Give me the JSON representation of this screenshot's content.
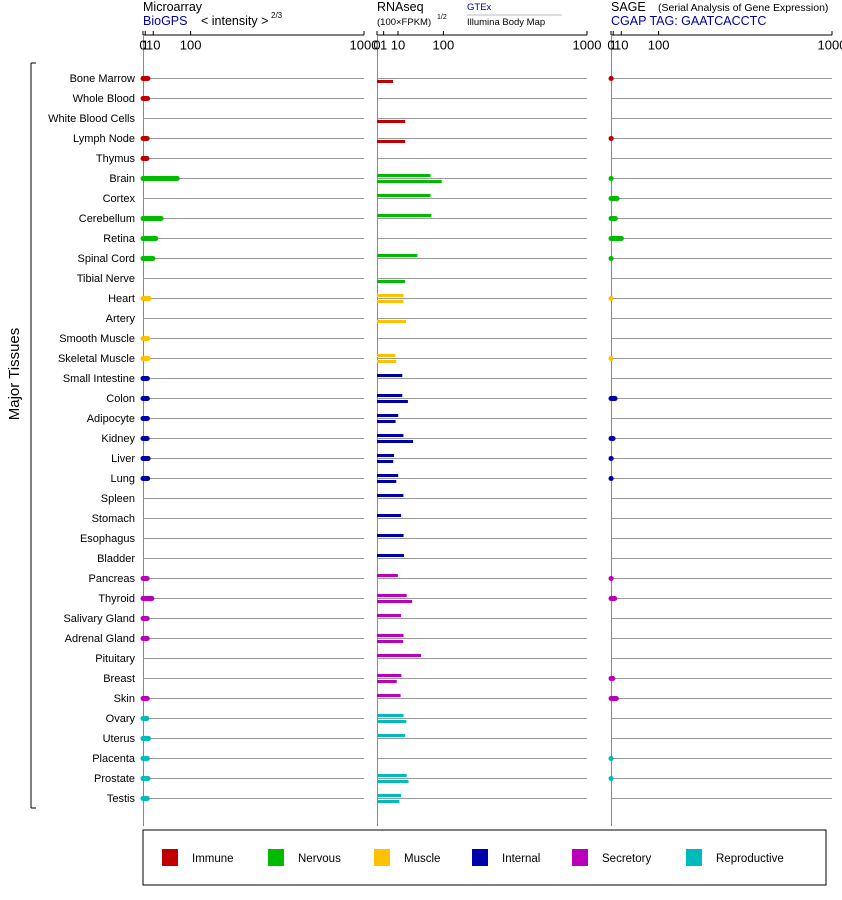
{
  "page": {
    "y_axis_label": "Major Tissues"
  },
  "panels": {
    "microarray": {
      "title": "Microarray",
      "source": "BioGPS",
      "scale_label": "< intensity >",
      "scale_exp": "2/3"
    },
    "rnaseq": {
      "title": "RNAseq",
      "scale_label": "(100×FPKM)",
      "scale_exp": "1/2",
      "source_top": "GTEx",
      "source_bottom": "Illumina Body Map"
    },
    "sage": {
      "title": "SAGE",
      "subtitle": "(Serial Analysis of Gene Expression)",
      "tag": "CGAP TAG: GAATCACCTC"
    }
  },
  "legend": [
    {
      "label": "Immune",
      "color": "#c00000"
    },
    {
      "label": "Nervous",
      "color": "#00bb00"
    },
    {
      "label": "Muscle",
      "color": "#ffc000"
    },
    {
      "label": "Internal",
      "color": "#0000aa"
    },
    {
      "label": "Secretory",
      "color": "#bb00bb"
    },
    {
      "label": "Reproductive",
      "color": "#00bbbb"
    }
  ],
  "chart_data": {
    "type": "bar",
    "x_scale": "power",
    "x_ticks": [
      "0",
      "1",
      "10",
      "100",
      "1000"
    ],
    "xlim": [
      0,
      1000
    ],
    "categories": [
      "Bone Marrow",
      "Whole Blood",
      "White Blood Cells",
      "Lymph Node",
      "Thymus",
      "Brain",
      "Cortex",
      "Cerebellum",
      "Retina",
      "Spinal Cord",
      "Tibial Nerve",
      "Heart",
      "Artery",
      "Smooth Muscle",
      "Skeletal Muscle",
      "Small Intestine",
      "Colon",
      "Adipocyte",
      "Kidney",
      "Liver",
      "Lung",
      "Spleen",
      "Stomach",
      "Esophagus",
      "Bladder",
      "Pancreas",
      "Thyroid",
      "Salivary Gland",
      "Adrenal Gland",
      "Pituitary",
      "Breast",
      "Skin",
      "Ovary",
      "Uterus",
      "Placenta",
      "Prostate",
      "Testis"
    ],
    "category_groups": [
      "Immune",
      "Immune",
      "Immune",
      "Immune",
      "Immune",
      "Nervous",
      "Nervous",
      "Nervous",
      "Nervous",
      "Nervous",
      "Nervous",
      "Muscle",
      "Muscle",
      "Muscle",
      "Muscle",
      "Internal",
      "Internal",
      "Internal",
      "Internal",
      "Internal",
      "Internal",
      "Internal",
      "Internal",
      "Internal",
      "Internal",
      "Secretory",
      "Secretory",
      "Secretory",
      "Secretory",
      "Secretory",
      "Secretory",
      "Secretory",
      "Reproductive",
      "Reproductive",
      "Reproductive",
      "Reproductive",
      "Reproductive"
    ],
    "series": [
      {
        "name": "Microarray",
        "values": [
          3.3,
          3.0,
          null,
          2.6,
          2.4,
          61,
          null,
          23.5,
          14,
          9.5,
          null,
          4.6,
          null,
          3.1,
          3.4,
          2.8,
          2.8,
          2.8,
          2.6,
          3.5,
          3.1,
          null,
          null,
          null,
          null,
          2.6,
          8.1,
          2.6,
          2.7,
          null,
          null,
          2.7,
          2.3,
          3.9,
          2.8,
          3.4,
          2.7
        ]
      },
      {
        "name": "GTEx",
        "values": [
          null,
          null,
          null,
          null,
          null,
          65,
          65,
          67,
          null,
          37,
          null,
          16,
          null,
          null,
          7.8,
          14.5,
          14.5,
          10.2,
          15.8,
          6.6,
          10.2,
          15.8,
          13.2,
          16,
          16.5,
          9.9,
          20,
          13.1,
          16,
          44,
          13.5,
          12.6,
          16,
          18,
          null,
          20,
          13.1
        ]
      },
      {
        "name": "Illumina Body Map",
        "values": [
          5.8,
          null,
          18,
          18,
          null,
          95,
          null,
          null,
          null,
          null,
          18,
          16,
          19,
          null,
          8.4,
          null,
          21.7,
          7.8,
          29.5,
          6,
          8.4,
          null,
          null,
          null,
          null,
          null,
          28,
          null,
          15.5,
          null,
          8.8,
          null,
          19.5,
          null,
          null,
          22.5,
          11.4
        ]
      },
      {
        "name": "SAGE",
        "values": [
          0.04,
          null,
          null,
          0.04,
          null,
          0.03,
          4.6,
          2.8,
          10.2,
          0.02,
          null,
          0.01,
          null,
          null,
          0.01,
          null,
          2.5,
          null,
          0.9,
          0.04,
          0.03,
          null,
          null,
          null,
          null,
          0.03,
          2.2,
          null,
          null,
          null,
          0.75,
          3.8,
          null,
          null,
          0.02,
          0.02,
          null
        ]
      }
    ]
  }
}
